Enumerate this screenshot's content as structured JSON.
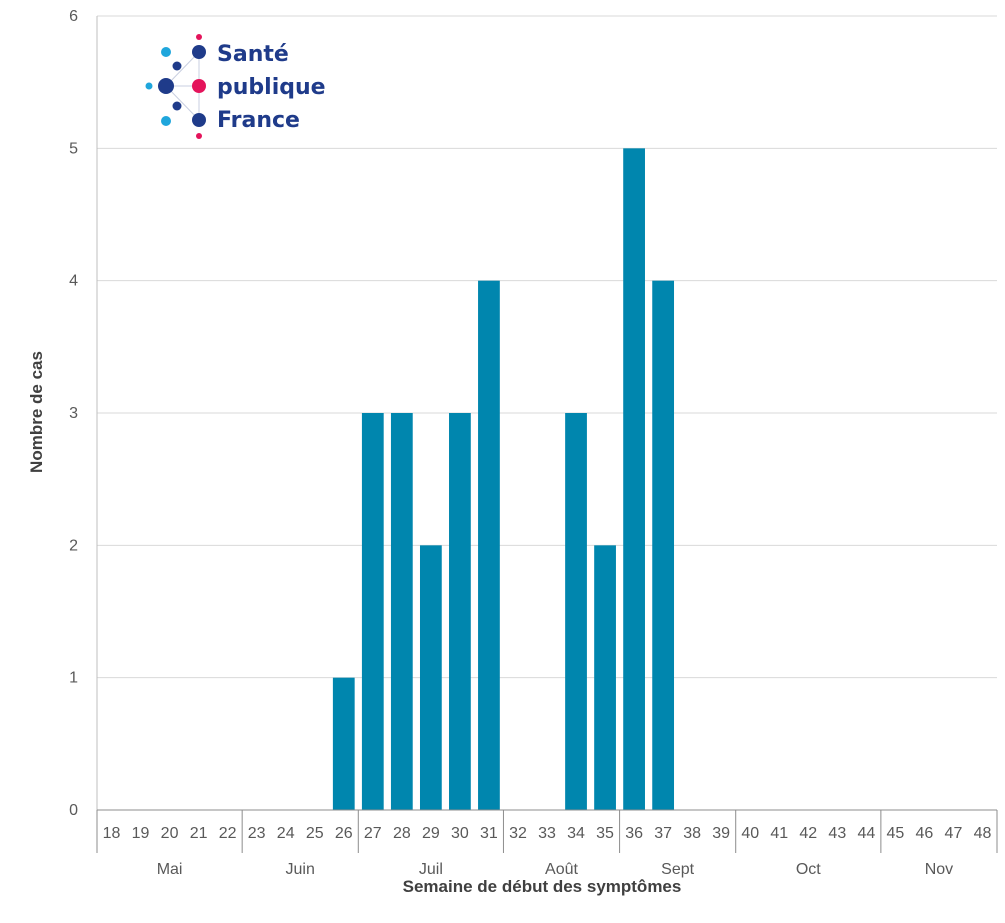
{
  "logo": {
    "lines": [
      "Santé",
      "publique",
      "France"
    ],
    "colors": {
      "dark": "#1f3b8a",
      "light": "#1fa6dc",
      "pink": "#e4145b"
    }
  },
  "chart_data": {
    "type": "bar",
    "xlabel": "Semaine de début des symptômes",
    "ylabel": "Nombre de cas",
    "ylim": [
      0,
      6
    ],
    "yticks": [
      0,
      1,
      2,
      3,
      4,
      5,
      6
    ],
    "grid": true,
    "bar_color": "#0086ae",
    "categories": [
      "18",
      "19",
      "20",
      "21",
      "22",
      "23",
      "24",
      "25",
      "26",
      "27",
      "28",
      "29",
      "30",
      "31",
      "32",
      "33",
      "34",
      "35",
      "36",
      "37",
      "38",
      "39",
      "40",
      "41",
      "42",
      "43",
      "44",
      "45",
      "46",
      "47",
      "48"
    ],
    "values": [
      0,
      0,
      0,
      0,
      0,
      0,
      0,
      0,
      1,
      3,
      3,
      2,
      3,
      4,
      0,
      0,
      3,
      2,
      5,
      4,
      0,
      0,
      0,
      0,
      0,
      0,
      0,
      0,
      0,
      0,
      0
    ],
    "months": [
      {
        "label": "Mai",
        "count": 5
      },
      {
        "label": "Juin",
        "count": 4
      },
      {
        "label": "Juil",
        "count": 5
      },
      {
        "label": "Août",
        "count": 4
      },
      {
        "label": "Sept",
        "count": 4
      },
      {
        "label": "Oct",
        "count": 5
      },
      {
        "label": "Nov",
        "count": 4
      }
    ]
  }
}
